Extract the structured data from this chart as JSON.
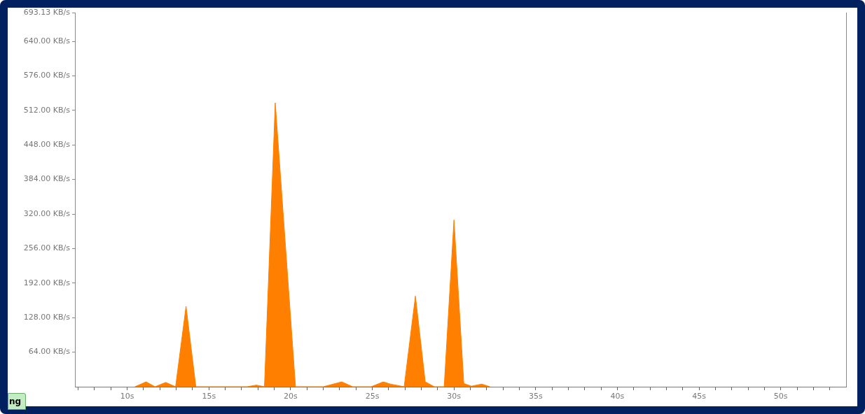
{
  "chart_data": {
    "type": "area",
    "x": [
      10.47,
      11.16,
      11.7,
      12.36,
      12.96,
      13.6,
      14.2,
      17.34,
      17.9,
      18.4,
      19.06,
      20.3,
      22.0,
      23.13,
      23.8,
      24.93,
      25.67,
      26.1,
      26.95,
      27.64,
      28.24,
      28.8,
      29.4,
      30.0,
      30.6,
      31.07,
      31.7,
      32.2
    ],
    "values": [
      0,
      9,
      0,
      8,
      0,
      149,
      0,
      0,
      3,
      0,
      526,
      0,
      0,
      9,
      0,
      0,
      9,
      5,
      0,
      168,
      9,
      0,
      0,
      309,
      6,
      1,
      5,
      0
    ],
    "color": "#ff8000",
    "xlim": [
      6.8,
      54
    ],
    "xticks": [
      {
        "value": 7,
        "label": null
      },
      {
        "value": 8,
        "label": null
      },
      {
        "value": 9,
        "label": null
      },
      {
        "value": 10,
        "label": "10s"
      },
      {
        "value": 11,
        "label": null
      },
      {
        "value": 12,
        "label": null
      },
      {
        "value": 13,
        "label": null
      },
      {
        "value": 14,
        "label": null
      },
      {
        "value": 15,
        "label": "15s"
      },
      {
        "value": 16,
        "label": null
      },
      {
        "value": 17,
        "label": null
      },
      {
        "value": 18,
        "label": null
      },
      {
        "value": 19,
        "label": null
      },
      {
        "value": 20,
        "label": "20s"
      },
      {
        "value": 21,
        "label": null
      },
      {
        "value": 22,
        "label": null
      },
      {
        "value": 23,
        "label": null
      },
      {
        "value": 24,
        "label": null
      },
      {
        "value": 25,
        "label": "25s"
      },
      {
        "value": 26,
        "label": null
      },
      {
        "value": 27,
        "label": null
      },
      {
        "value": 28,
        "label": null
      },
      {
        "value": 29,
        "label": null
      },
      {
        "value": 30,
        "label": "30s"
      },
      {
        "value": 31,
        "label": null
      },
      {
        "value": 32,
        "label": null
      },
      {
        "value": 33,
        "label": null
      },
      {
        "value": 34,
        "label": null
      },
      {
        "value": 35,
        "label": "35s"
      },
      {
        "value": 36,
        "label": null
      },
      {
        "value": 37,
        "label": null
      },
      {
        "value": 38,
        "label": null
      },
      {
        "value": 39,
        "label": null
      },
      {
        "value": 40,
        "label": "40s"
      },
      {
        "value": 41,
        "label": null
      },
      {
        "value": 42,
        "label": null
      },
      {
        "value": 43,
        "label": null
      },
      {
        "value": 44,
        "label": null
      },
      {
        "value": 45,
        "label": "45s"
      },
      {
        "value": 46,
        "label": null
      },
      {
        "value": 47,
        "label": null
      },
      {
        "value": 48,
        "label": null
      },
      {
        "value": 49,
        "label": null
      },
      {
        "value": 50,
        "label": "50s"
      },
      {
        "value": 51,
        "label": null
      },
      {
        "value": 52,
        "label": null
      },
      {
        "value": 53,
        "label": null
      }
    ],
    "ylim": [
      0,
      693.13
    ],
    "yticks": [
      {
        "value": 64,
        "label": "64.00 KB/s"
      },
      {
        "value": 128,
        "label": "128.00 KB/s"
      },
      {
        "value": 192,
        "label": "192.00 KB/s"
      },
      {
        "value": 256,
        "label": "256.00 KB/s"
      },
      {
        "value": 320,
        "label": "320.00 KB/s"
      },
      {
        "value": 384,
        "label": "384.00 KB/s"
      },
      {
        "value": 448,
        "label": "448.00 KB/s"
      },
      {
        "value": 512,
        "label": "512.00 KB/s"
      },
      {
        "value": 576,
        "label": "576.00 KB/s"
      },
      {
        "value": 640,
        "label": "640.00 KB/s"
      },
      {
        "value": 693.13,
        "label": "693.13 KB/s"
      }
    ],
    "annotations": [
      "ng"
    ],
    "grid": false,
    "legend": false,
    "marker": "none"
  }
}
